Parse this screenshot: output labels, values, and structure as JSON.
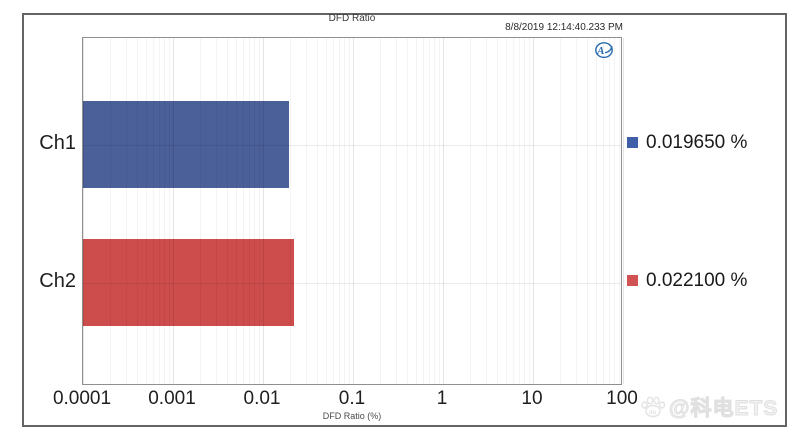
{
  "header": {
    "title": "DFD Ratio",
    "timestamp": "8/8/2019 12:14:40.233 PM"
  },
  "logo": {
    "name": "audio-precision-logo",
    "text": "Ap"
  },
  "chart_data": {
    "type": "bar",
    "orientation": "horizontal",
    "title": "DFD Ratio",
    "xlabel": "DFD Ratio (%)",
    "x_scale": "log",
    "xlim": [
      0.0001,
      100
    ],
    "x_ticks": [
      "0.0001",
      "0.001",
      "0.01",
      "0.1",
      "1",
      "10",
      "100"
    ],
    "grid": true,
    "legend_position": "right",
    "categories": [
      "Ch1",
      "Ch2"
    ],
    "values": [
      0.01965,
      0.0221
    ],
    "value_labels": [
      "0.019650 %",
      "0.022100 %"
    ],
    "series_colors": [
      "#4b5f99",
      "#cd4c4c"
    ],
    "legend_marker_colors": [
      "#3f5fa8",
      "#d05252"
    ]
  },
  "watermark": {
    "text": "@科电ETS"
  }
}
